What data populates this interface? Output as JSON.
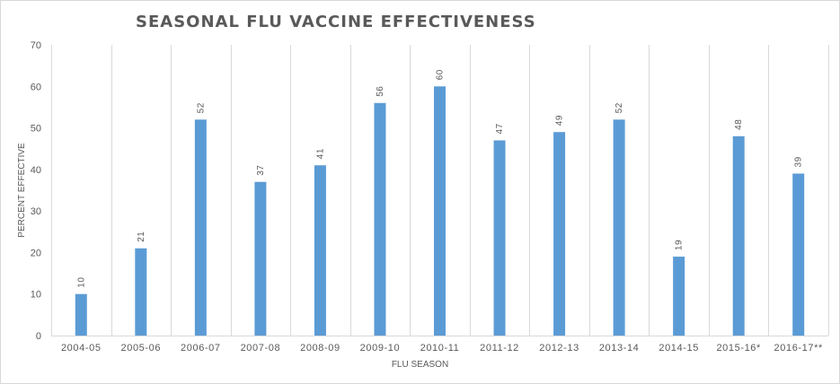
{
  "chart_data": {
    "type": "bar",
    "title": "SEASONAL FLU VACCINE EFFECTIVENESS",
    "xlabel": "FLU SEASON",
    "ylabel": "PERCENT EFFECTIVE",
    "ylim": [
      0,
      70
    ],
    "yticks": [
      0,
      10,
      20,
      30,
      40,
      50,
      60,
      70
    ],
    "grid": "vertical",
    "categories": [
      "2004-05",
      "2005-06",
      "2006-07",
      "2007-08",
      "2008-09",
      "2009-10",
      "2010-11",
      "2011-12",
      "2012-13",
      "2013-14",
      "2014-15",
      "2015-16*",
      "2016-17**"
    ],
    "values": [
      10,
      21,
      52,
      37,
      41,
      56,
      60,
      47,
      49,
      52,
      19,
      48,
      39
    ],
    "data_labels": [
      "10",
      "21",
      "52",
      "37",
      "41",
      "56",
      "60",
      "47",
      "49",
      "52",
      "19",
      "48",
      "39"
    ],
    "bar_color": "#5b9bd5",
    "grid_color": "#d9d9d9",
    "text_color": "#595959"
  }
}
